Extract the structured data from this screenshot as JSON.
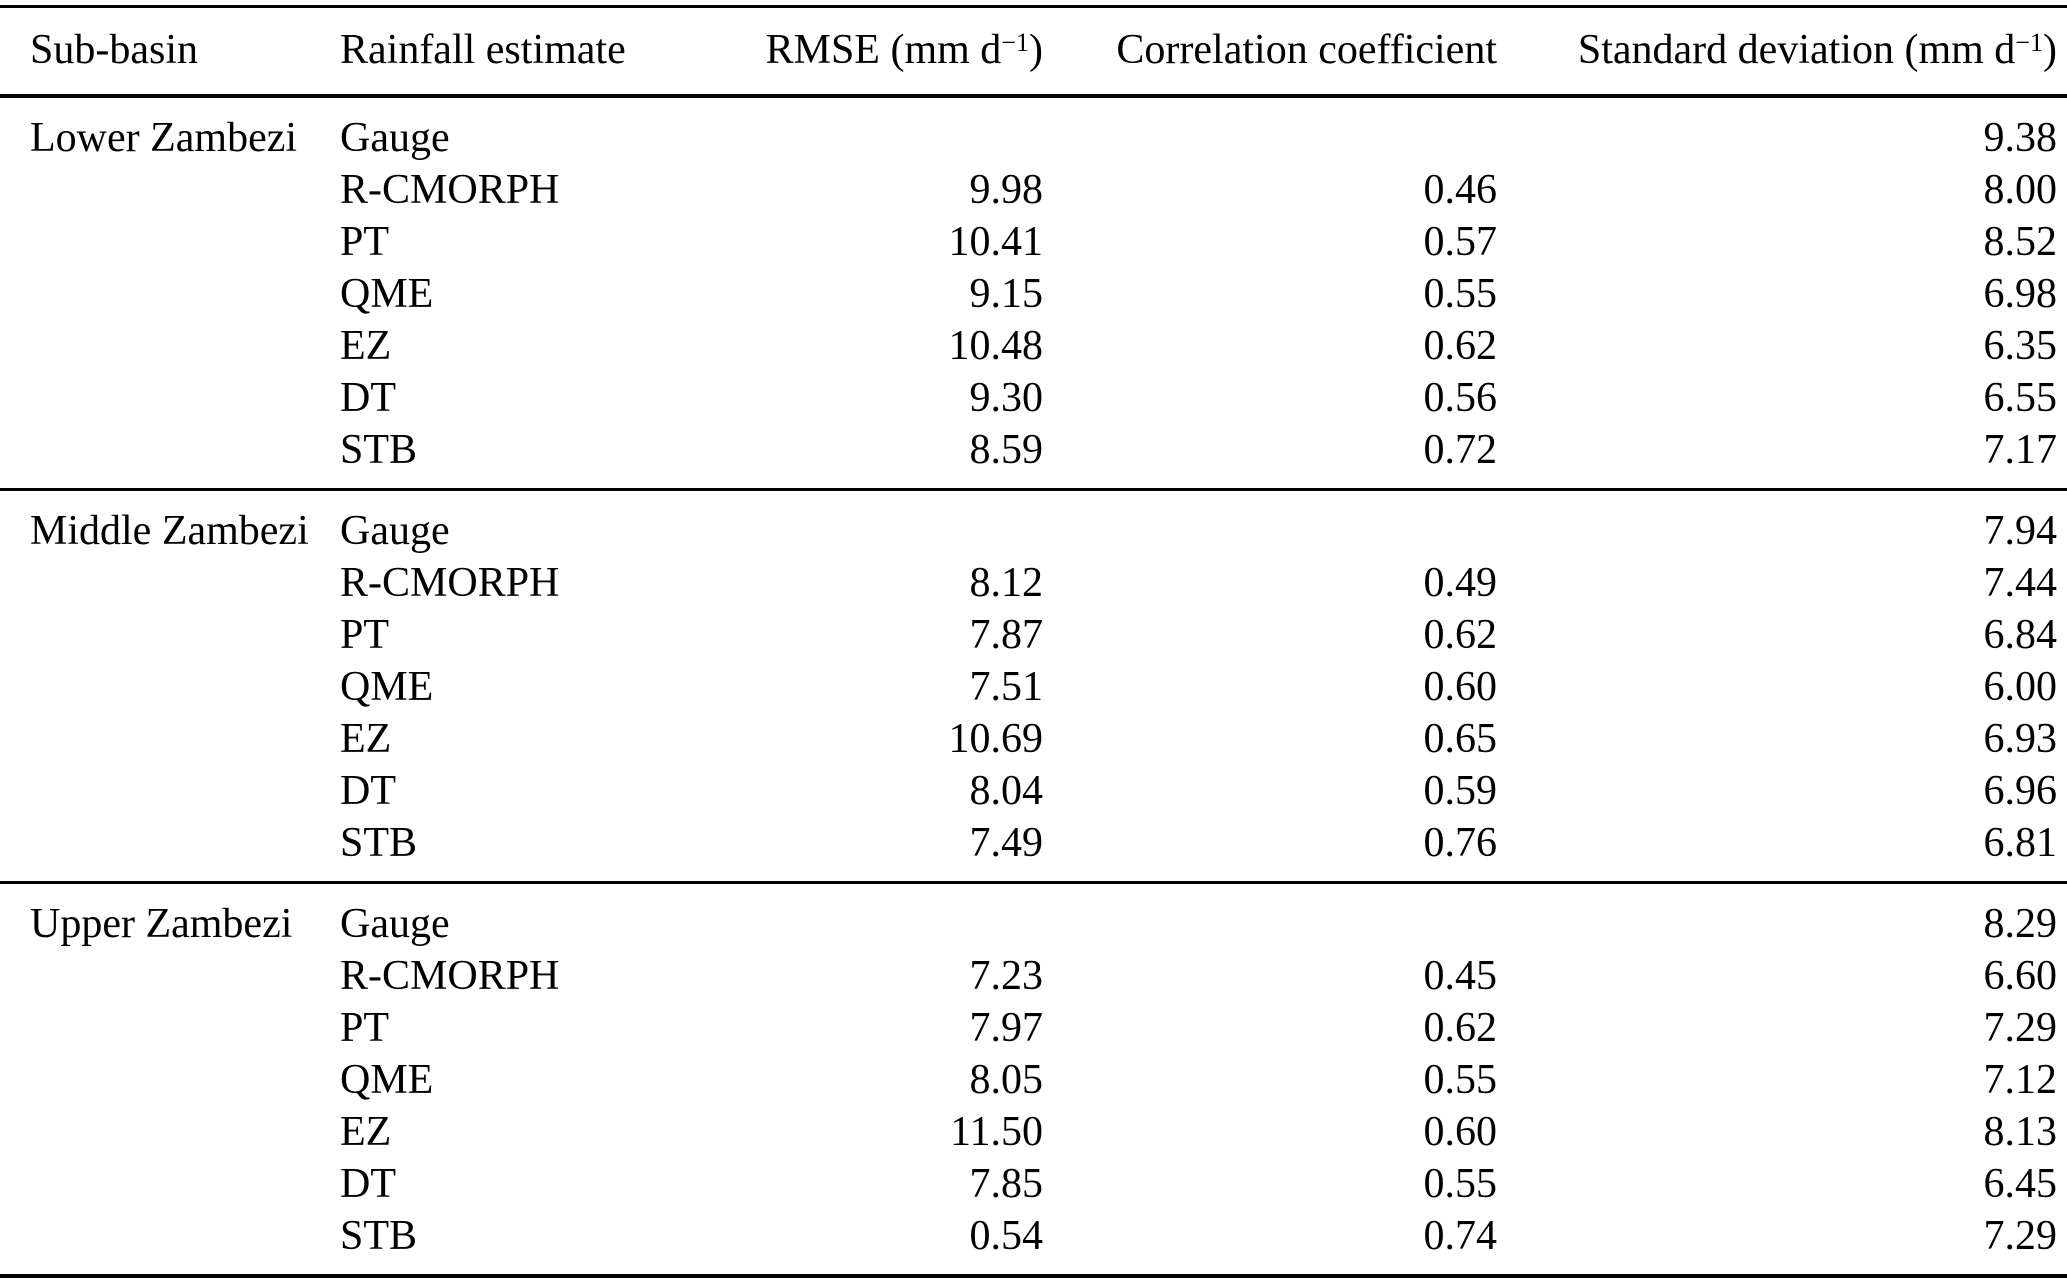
{
  "table": {
    "columns": [
      {
        "label": "Sub-basin"
      },
      {
        "label": "Rainfall estimate"
      },
      {
        "prefix": "RMSE (mm d",
        "sup": "−1",
        "suffix": ")"
      },
      {
        "label": "Correlation coefficient"
      },
      {
        "prefix": "Standard deviation (mm d",
        "sup": "−1",
        "suffix": ")"
      }
    ],
    "sections": [
      {
        "name": "Lower Zambezi",
        "rows": [
          {
            "estimate": "Gauge",
            "rmse": "",
            "correlation": "",
            "std_dev": "9.38"
          },
          {
            "estimate": "R-CMORPH",
            "rmse": "9.98",
            "correlation": "0.46",
            "std_dev": "8.00"
          },
          {
            "estimate": "PT",
            "rmse": "10.41",
            "correlation": "0.57",
            "std_dev": "8.52"
          },
          {
            "estimate": "QME",
            "rmse": "9.15",
            "correlation": "0.55",
            "std_dev": "6.98"
          },
          {
            "estimate": "EZ",
            "rmse": "10.48",
            "correlation": "0.62",
            "std_dev": "6.35"
          },
          {
            "estimate": "DT",
            "rmse": "9.30",
            "correlation": "0.56",
            "std_dev": "6.55"
          },
          {
            "estimate": "STB",
            "rmse": "8.59",
            "correlation": "0.72",
            "std_dev": "7.17"
          }
        ]
      },
      {
        "name": "Middle Zambezi",
        "rows": [
          {
            "estimate": "Gauge",
            "rmse": "",
            "correlation": "",
            "std_dev": "7.94"
          },
          {
            "estimate": "R-CMORPH",
            "rmse": "8.12",
            "correlation": "0.49",
            "std_dev": "7.44"
          },
          {
            "estimate": "PT",
            "rmse": "7.87",
            "correlation": "0.62",
            "std_dev": "6.84"
          },
          {
            "estimate": "QME",
            "rmse": "7.51",
            "correlation": "0.60",
            "std_dev": "6.00"
          },
          {
            "estimate": "EZ",
            "rmse": "10.69",
            "correlation": "0.65",
            "std_dev": "6.93"
          },
          {
            "estimate": "DT",
            "rmse": "8.04",
            "correlation": "0.59",
            "std_dev": "6.96"
          },
          {
            "estimate": "STB",
            "rmse": "7.49",
            "correlation": "0.76",
            "std_dev": "6.81"
          }
        ]
      },
      {
        "name": "Upper Zambezi",
        "rows": [
          {
            "estimate": "Gauge",
            "rmse": "",
            "correlation": "",
            "std_dev": "8.29"
          },
          {
            "estimate": "R-CMORPH",
            "rmse": "7.23",
            "correlation": "0.45",
            "std_dev": "6.60"
          },
          {
            "estimate": "PT",
            "rmse": "7.97",
            "correlation": "0.62",
            "std_dev": "7.29"
          },
          {
            "estimate": "QME",
            "rmse": "8.05",
            "correlation": "0.55",
            "std_dev": "7.12"
          },
          {
            "estimate": "EZ",
            "rmse": "11.50",
            "correlation": "0.60",
            "std_dev": "8.13"
          },
          {
            "estimate": "DT",
            "rmse": "7.85",
            "correlation": "0.55",
            "std_dev": "6.45"
          },
          {
            "estimate": "STB",
            "rmse": "0.54",
            "correlation": "0.74",
            "std_dev": "7.29"
          }
        ]
      }
    ]
  }
}
